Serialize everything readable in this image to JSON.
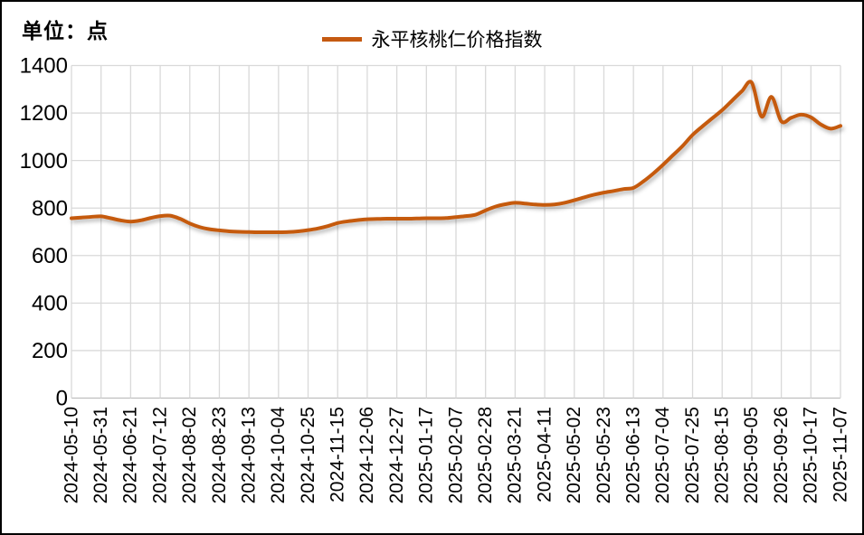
{
  "header": {
    "unit_label": "单位：点"
  },
  "legend": {
    "series_label": "永平核桃仁价格指数",
    "swatch_color": "#C55A11"
  },
  "colors": {
    "line": "#C55A11",
    "gridline": "#D9D9D9",
    "axis_line": "#BFBFBF",
    "text": "#000000",
    "background": "#FFFFFF",
    "frame_border": "#000000"
  },
  "chart_data": {
    "type": "line",
    "title": "",
    "unit": "单位：点",
    "ylabel": "",
    "xlabel": "",
    "ylim": [
      0,
      1400
    ],
    "y_ticks": [
      0,
      200,
      400,
      600,
      800,
      1000,
      1200,
      1400
    ],
    "grid": true,
    "legend_position": "top-center",
    "x_tick_every": 3,
    "x_tick_rotation": -90,
    "series": [
      {
        "name": "永平核桃仁价格指数",
        "color": "#C55A11",
        "smooth": true,
        "x": [
          "2024-05-10",
          "2024-05-17",
          "2024-05-24",
          "2024-05-31",
          "2024-06-07",
          "2024-06-14",
          "2024-06-21",
          "2024-06-28",
          "2024-07-05",
          "2024-07-12",
          "2024-07-19",
          "2024-07-26",
          "2024-08-02",
          "2024-08-09",
          "2024-08-16",
          "2024-08-23",
          "2024-08-30",
          "2024-09-06",
          "2024-09-13",
          "2024-09-20",
          "2024-09-27",
          "2024-10-04",
          "2024-10-11",
          "2024-10-18",
          "2024-10-25",
          "2024-11-01",
          "2024-11-08",
          "2024-11-15",
          "2024-11-22",
          "2024-11-29",
          "2024-12-06",
          "2024-12-13",
          "2024-12-20",
          "2024-12-27",
          "2025-01-03",
          "2025-01-10",
          "2025-01-17",
          "2025-01-24",
          "2025-01-31",
          "2025-02-07",
          "2025-02-14",
          "2025-02-21",
          "2025-02-28",
          "2025-03-07",
          "2025-03-14",
          "2025-03-21",
          "2025-03-28",
          "2025-04-04",
          "2025-04-11",
          "2025-04-18",
          "2025-04-25",
          "2025-05-02",
          "2025-05-09",
          "2025-05-16",
          "2025-05-23",
          "2025-05-30",
          "2025-06-06",
          "2025-06-13",
          "2025-06-20",
          "2025-06-27",
          "2025-07-04",
          "2025-07-11",
          "2025-07-18",
          "2025-07-25",
          "2025-08-01",
          "2025-08-08",
          "2025-08-15",
          "2025-08-22",
          "2025-08-29",
          "2025-09-05",
          "2025-09-12",
          "2025-09-19",
          "2025-09-26",
          "2025-10-03",
          "2025-10-10",
          "2025-10-17",
          "2025-10-24",
          "2025-10-31",
          "2025-11-07"
        ],
        "values": [
          757,
          760,
          763,
          765,
          757,
          748,
          743,
          748,
          758,
          766,
          768,
          755,
          735,
          720,
          711,
          706,
          702,
          700,
          699,
          698,
          698,
          698,
          699,
          702,
          707,
          714,
          724,
          737,
          744,
          749,
          753,
          754,
          755,
          755,
          755,
          756,
          757,
          757,
          758,
          762,
          766,
          772,
          790,
          806,
          816,
          822,
          819,
          815,
          813,
          815,
          822,
          833,
          845,
          856,
          865,
          872,
          880,
          885,
          912,
          945,
          982,
          1022,
          1062,
          1108,
          1144,
          1178,
          1212,
          1252,
          1292,
          1328,
          1185,
          1268,
          1165,
          1180,
          1193,
          1182,
          1152,
          1134,
          1146
        ]
      }
    ]
  }
}
